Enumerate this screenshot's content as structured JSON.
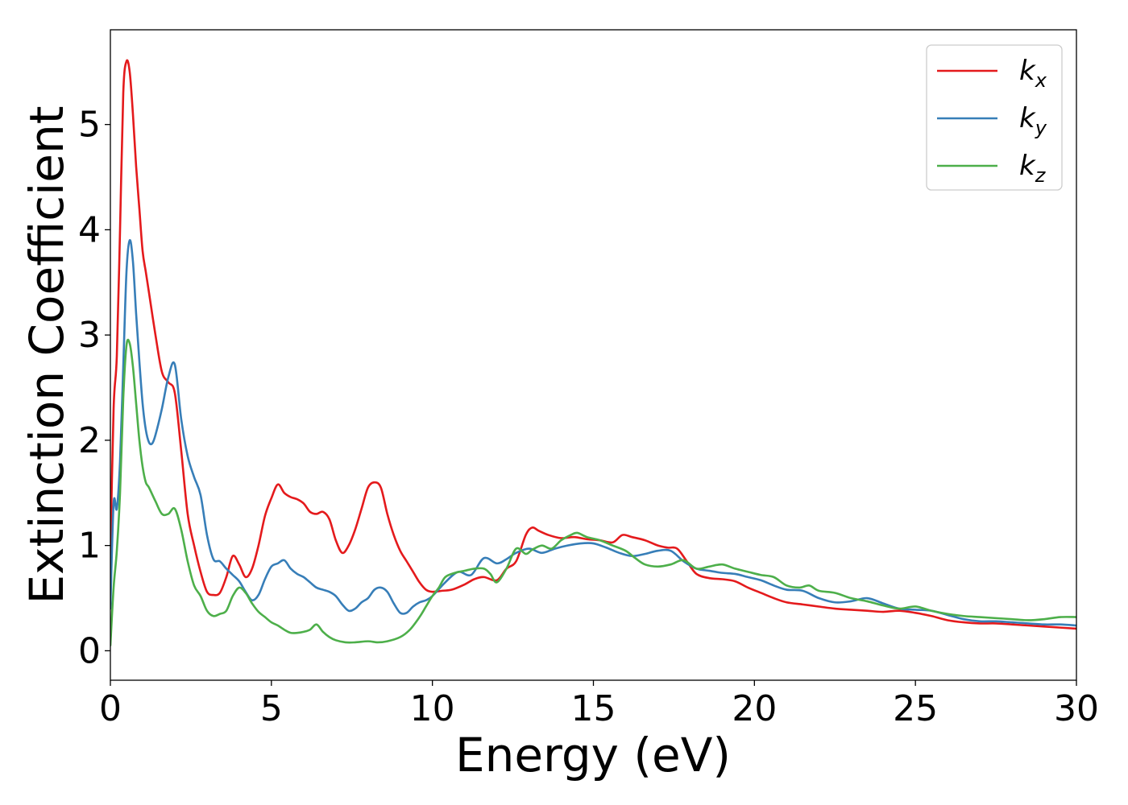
{
  "chart_data": {
    "type": "line",
    "title": "",
    "xlabel": "Energy (eV)",
    "ylabel": "Extinction Coefficient",
    "xlim": [
      0,
      30
    ],
    "ylim": [
      -0.28,
      5.9
    ],
    "xticks": [
      0,
      5,
      10,
      15,
      20,
      25,
      30
    ],
    "yticks": [
      0,
      1,
      2,
      3,
      4,
      5
    ],
    "grid": false,
    "legend_position": "top-right",
    "series": [
      {
        "name": "k",
        "subscript": "x",
        "color": "#e41a1c",
        "x": [
          0,
          0.1,
          0.2,
          0.3,
          0.4,
          0.5,
          0.6,
          0.7,
          0.8,
          0.9,
          1.0,
          1.1,
          1.2,
          1.4,
          1.6,
          1.8,
          2.0,
          2.2,
          2.4,
          2.6,
          2.8,
          3.0,
          3.2,
          3.4,
          3.6,
          3.8,
          4.0,
          4.2,
          4.4,
          4.6,
          4.8,
          5.0,
          5.2,
          5.4,
          5.6,
          5.8,
          6.0,
          6.2,
          6.4,
          6.6,
          6.8,
          7.0,
          7.2,
          7.4,
          7.6,
          7.8,
          8.0,
          8.2,
          8.4,
          8.6,
          8.8,
          9.0,
          9.2,
          9.4,
          9.6,
          9.8,
          10.0,
          10.3,
          10.6,
          11.0,
          11.3,
          11.6,
          12.0,
          12.3,
          12.6,
          12.9,
          13.1,
          13.3,
          13.6,
          14.0,
          14.4,
          14.8,
          15.2,
          15.6,
          15.9,
          16.2,
          16.6,
          17.0,
          17.3,
          17.6,
          17.9,
          18.2,
          18.6,
          19.0,
          19.4,
          19.8,
          20.2,
          20.6,
          21.0,
          21.5,
          22.0,
          22.5,
          23.0,
          23.5,
          24.0,
          24.5,
          25.0,
          25.5,
          26.0,
          26.5,
          27.0,
          27.5,
          28.0,
          28.5,
          29.0,
          29.5,
          30.0
        ],
        "values": [
          0.9,
          2.3,
          2.8,
          4.0,
          5.3,
          5.6,
          5.5,
          5.1,
          4.6,
          4.2,
          3.8,
          3.6,
          3.4,
          3.0,
          2.65,
          2.55,
          2.45,
          1.9,
          1.3,
          1.0,
          0.75,
          0.56,
          0.53,
          0.55,
          0.7,
          0.9,
          0.82,
          0.7,
          0.78,
          1.0,
          1.28,
          1.45,
          1.58,
          1.5,
          1.46,
          1.44,
          1.4,
          1.32,
          1.3,
          1.32,
          1.25,
          1.05,
          0.93,
          1.0,
          1.15,
          1.35,
          1.55,
          1.6,
          1.55,
          1.3,
          1.1,
          0.95,
          0.85,
          0.75,
          0.65,
          0.58,
          0.56,
          0.57,
          0.58,
          0.63,
          0.68,
          0.7,
          0.67,
          0.78,
          0.85,
          1.1,
          1.17,
          1.14,
          1.1,
          1.07,
          1.08,
          1.06,
          1.05,
          1.03,
          1.1,
          1.08,
          1.05,
          1.0,
          0.98,
          0.97,
          0.85,
          0.73,
          0.69,
          0.68,
          0.66,
          0.6,
          0.55,
          0.5,
          0.46,
          0.44,
          0.42,
          0.4,
          0.39,
          0.38,
          0.37,
          0.38,
          0.36,
          0.33,
          0.29,
          0.27,
          0.26,
          0.26,
          0.25,
          0.24,
          0.23,
          0.22,
          0.21
        ]
      },
      {
        "name": "k",
        "subscript": "y",
        "color": "#377eb8",
        "x": [
          0,
          0.1,
          0.2,
          0.3,
          0.4,
          0.5,
          0.6,
          0.7,
          0.8,
          0.9,
          1.0,
          1.1,
          1.2,
          1.3,
          1.4,
          1.6,
          1.8,
          2.0,
          2.2,
          2.4,
          2.6,
          2.8,
          3.0,
          3.2,
          3.4,
          3.6,
          3.8,
          4.0,
          4.2,
          4.4,
          4.6,
          4.8,
          5.0,
          5.2,
          5.4,
          5.6,
          5.8,
          6.0,
          6.2,
          6.4,
          6.6,
          6.8,
          7.0,
          7.2,
          7.4,
          7.6,
          7.8,
          8.0,
          8.2,
          8.4,
          8.6,
          8.8,
          9.0,
          9.2,
          9.4,
          9.6,
          9.8,
          10.0,
          10.4,
          10.8,
          11.2,
          11.6,
          12.0,
          12.3,
          12.6,
          13.0,
          13.4,
          13.8,
          14.2,
          14.6,
          15.0,
          15.4,
          15.8,
          16.2,
          16.6,
          17.0,
          17.4,
          17.8,
          18.2,
          18.6,
          19.0,
          19.4,
          19.8,
          20.2,
          20.6,
          21.0,
          21.5,
          22.0,
          22.5,
          23.0,
          23.5,
          24.0,
          24.5,
          25.0,
          25.5,
          26.0,
          26.5,
          27.0,
          27.5,
          28.0,
          28.5,
          29.0,
          29.5,
          30.0
        ],
        "values": [
          0.4,
          1.4,
          1.35,
          1.8,
          2.7,
          3.6,
          3.9,
          3.7,
          3.2,
          2.75,
          2.35,
          2.1,
          1.98,
          1.97,
          2.05,
          2.3,
          2.6,
          2.72,
          2.2,
          1.85,
          1.65,
          1.48,
          1.1,
          0.87,
          0.85,
          0.78,
          0.72,
          0.66,
          0.56,
          0.48,
          0.53,
          0.68,
          0.8,
          0.83,
          0.86,
          0.78,
          0.73,
          0.7,
          0.65,
          0.6,
          0.58,
          0.56,
          0.52,
          0.44,
          0.38,
          0.4,
          0.46,
          0.5,
          0.58,
          0.6,
          0.56,
          0.45,
          0.36,
          0.36,
          0.42,
          0.46,
          0.48,
          0.52,
          0.65,
          0.75,
          0.72,
          0.88,
          0.83,
          0.87,
          0.93,
          0.97,
          0.93,
          0.97,
          1.0,
          1.02,
          1.02,
          0.98,
          0.93,
          0.9,
          0.92,
          0.95,
          0.95,
          0.85,
          0.78,
          0.76,
          0.74,
          0.73,
          0.7,
          0.67,
          0.62,
          0.58,
          0.57,
          0.5,
          0.46,
          0.47,
          0.5,
          0.45,
          0.4,
          0.39,
          0.38,
          0.34,
          0.3,
          0.28,
          0.28,
          0.27,
          0.26,
          0.25,
          0.25,
          0.24
        ]
      },
      {
        "name": "k",
        "subscript": "z",
        "color": "#4daf4a",
        "x": [
          0,
          0.1,
          0.2,
          0.3,
          0.4,
          0.5,
          0.6,
          0.7,
          0.8,
          0.9,
          1.0,
          1.1,
          1.2,
          1.4,
          1.6,
          1.8,
          2.0,
          2.2,
          2.4,
          2.6,
          2.8,
          3.0,
          3.2,
          3.4,
          3.6,
          3.8,
          4.0,
          4.2,
          4.4,
          4.6,
          4.8,
          5.0,
          5.2,
          5.4,
          5.6,
          5.8,
          6.0,
          6.2,
          6.4,
          6.6,
          6.8,
          7.0,
          7.3,
          7.6,
          8.0,
          8.3,
          8.6,
          9.0,
          9.3,
          9.6,
          9.8,
          10.0,
          10.2,
          10.4,
          10.7,
          11.0,
          11.3,
          11.6,
          11.8,
          12.0,
          12.3,
          12.6,
          12.9,
          13.1,
          13.4,
          13.7,
          14.0,
          14.3,
          14.5,
          14.8,
          15.2,
          15.6,
          16.0,
          16.3,
          16.6,
          17.0,
          17.4,
          17.8,
          18.2,
          18.6,
          19.0,
          19.4,
          19.8,
          20.2,
          20.6,
          21.0,
          21.4,
          21.7,
          22.0,
          22.5,
          23.0,
          23.5,
          24.0,
          24.5,
          25.0,
          25.5,
          26.0,
          26.5,
          27.0,
          27.5,
          28.0,
          28.5,
          29.0,
          29.5,
          30.0
        ],
        "values": [
          0.05,
          0.6,
          0.95,
          1.5,
          2.4,
          2.9,
          2.92,
          2.7,
          2.35,
          2.0,
          1.75,
          1.6,
          1.55,
          1.42,
          1.3,
          1.3,
          1.35,
          1.15,
          0.85,
          0.62,
          0.52,
          0.38,
          0.33,
          0.35,
          0.38,
          0.52,
          0.6,
          0.55,
          0.45,
          0.37,
          0.32,
          0.27,
          0.24,
          0.2,
          0.17,
          0.17,
          0.18,
          0.2,
          0.25,
          0.18,
          0.13,
          0.1,
          0.08,
          0.08,
          0.09,
          0.08,
          0.09,
          0.13,
          0.2,
          0.32,
          0.42,
          0.52,
          0.6,
          0.7,
          0.74,
          0.76,
          0.78,
          0.78,
          0.73,
          0.65,
          0.78,
          0.97,
          0.92,
          0.96,
          1.0,
          0.97,
          1.05,
          1.1,
          1.12,
          1.08,
          1.05,
          1.0,
          0.95,
          0.88,
          0.82,
          0.8,
          0.82,
          0.86,
          0.78,
          0.8,
          0.82,
          0.78,
          0.75,
          0.72,
          0.7,
          0.62,
          0.6,
          0.62,
          0.57,
          0.55,
          0.5,
          0.47,
          0.43,
          0.4,
          0.42,
          0.38,
          0.35,
          0.33,
          0.32,
          0.31,
          0.3,
          0.29,
          0.3,
          0.32,
          0.32
        ]
      }
    ]
  }
}
